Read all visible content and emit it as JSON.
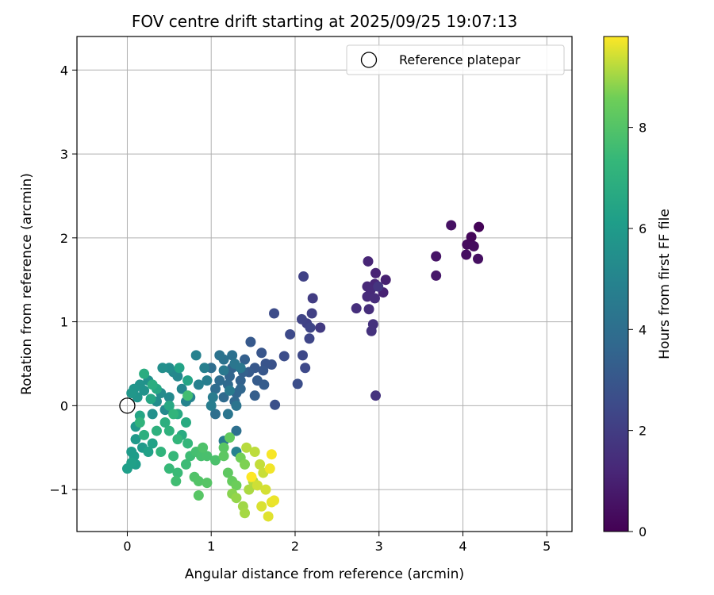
{
  "chart_data": {
    "type": "scatter",
    "title": "FOV centre drift starting at 2025/09/25 19:07:13",
    "xlabel": "Angular distance from reference (arcmin)",
    "ylabel": "Rotation from reference (arcmin)",
    "xlim": [
      -0.6,
      5.3
    ],
    "ylim": [
      -1.5,
      4.4
    ],
    "xticks": [
      0,
      1,
      2,
      3,
      4,
      5
    ],
    "xtick_labels": [
      "0",
      "1",
      "2",
      "3",
      "4",
      "5"
    ],
    "yticks": [
      -1,
      0,
      1,
      2,
      3,
      4
    ],
    "ytick_labels": [
      "−1",
      "0",
      "1",
      "2",
      "3",
      "4"
    ],
    "grid": true,
    "legend": {
      "position": "top-right",
      "label": "Reference platepar"
    },
    "reference_point": {
      "x": 0,
      "y": 0
    },
    "colorbar": {
      "label": "Hours from first FF file",
      "range": [
        0,
        9.8
      ],
      "ticks": [
        0,
        2,
        4,
        6,
        8
      ],
      "tick_labels": [
        "0",
        "2",
        "4",
        "6",
        "8"
      ],
      "colormap": "viridis"
    },
    "series": [
      {
        "name": "FOV centre",
        "points": [
          [
            4.19,
            2.13,
            0.1
          ],
          [
            4.1,
            2.01,
            0.2
          ],
          [
            4.05,
            1.92,
            0.3
          ],
          [
            4.13,
            1.9,
            0.35
          ],
          [
            4.04,
            1.8,
            0.4
          ],
          [
            4.18,
            1.75,
            0.45
          ],
          [
            3.86,
            2.15,
            0.5
          ],
          [
            3.68,
            1.78,
            0.6
          ],
          [
            3.68,
            1.55,
            0.7
          ],
          [
            3.08,
            1.5,
            1.0
          ],
          [
            3.05,
            1.35,
            1.05
          ],
          [
            2.96,
            1.58,
            1.1
          ],
          [
            2.87,
            1.72,
            1.15
          ],
          [
            2.95,
            1.45,
            1.2
          ],
          [
            2.86,
            1.42,
            1.25
          ],
          [
            2.9,
            1.38,
            1.3
          ],
          [
            2.86,
            1.3,
            1.35
          ],
          [
            2.95,
            1.28,
            1.4
          ],
          [
            2.88,
            1.15,
            1.45
          ],
          [
            2.73,
            1.16,
            1.5
          ],
          [
            2.93,
            0.97,
            1.55
          ],
          [
            2.91,
            0.89,
            1.6
          ],
          [
            2.96,
            0.12,
            1.65
          ],
          [
            2.99,
            1.42,
            1.7
          ],
          [
            2.3,
            0.93,
            1.9
          ],
          [
            2.21,
            1.28,
            2.0
          ],
          [
            2.2,
            1.1,
            2.1
          ],
          [
            2.14,
            0.98,
            2.15
          ],
          [
            2.1,
            1.54,
            2.2
          ],
          [
            2.08,
            1.03,
            2.25
          ],
          [
            2.18,
            0.93,
            2.3
          ],
          [
            2.17,
            0.8,
            2.35
          ],
          [
            2.09,
            0.6,
            2.4
          ],
          [
            2.12,
            0.45,
            2.45
          ],
          [
            1.94,
            0.85,
            2.5
          ],
          [
            1.75,
            1.1,
            2.55
          ],
          [
            1.87,
            0.59,
            2.6
          ],
          [
            2.03,
            0.26,
            2.65
          ],
          [
            1.76,
            0.01,
            2.7
          ],
          [
            1.72,
            0.49,
            2.8
          ],
          [
            1.65,
            0.5,
            2.9
          ],
          [
            1.6,
            0.63,
            2.95
          ],
          [
            1.62,
            0.42,
            3.0
          ],
          [
            1.52,
            0.45,
            3.05
          ],
          [
            1.47,
            0.76,
            3.1
          ],
          [
            1.45,
            0.4,
            3.15
          ],
          [
            1.55,
            0.3,
            3.2
          ],
          [
            1.63,
            0.25,
            3.25
          ],
          [
            1.52,
            0.12,
            3.3
          ],
          [
            1.4,
            0.55,
            3.35
          ],
          [
            1.38,
            0.4,
            3.4
          ],
          [
            1.35,
            0.3,
            3.45
          ],
          [
            1.25,
            0.45,
            3.5
          ],
          [
            1.22,
            0.35,
            3.55
          ],
          [
            1.3,
            0.15,
            3.6
          ],
          [
            1.35,
            0.2,
            3.65
          ],
          [
            1.28,
            0.05,
            3.7
          ],
          [
            1.2,
            0.25,
            3.75
          ],
          [
            1.15,
            0.1,
            3.8
          ],
          [
            1.1,
            0.3,
            3.85
          ],
          [
            1.05,
            0.2,
            3.9
          ],
          [
            1.0,
            0.45,
            3.95
          ],
          [
            1.05,
            -0.1,
            4.0
          ],
          [
            1.3,
            -0.3,
            4.05
          ],
          [
            1.25,
            0.6,
            4.1
          ],
          [
            1.15,
            0.55,
            4.15
          ],
          [
            1.1,
            0.6,
            4.2
          ],
          [
            1.3,
            0.0,
            4.25
          ],
          [
            1.2,
            -0.1,
            4.3
          ],
          [
            1.28,
            0.5,
            4.35
          ],
          [
            1.35,
            0.45,
            4.4
          ],
          [
            1.15,
            0.42,
            4.45
          ],
          [
            1.22,
            0.18,
            4.5
          ],
          [
            1.15,
            -0.42,
            4.55
          ],
          [
            1.02,
            0.1,
            4.6
          ],
          [
            1.0,
            0.0,
            4.65
          ],
          [
            0.95,
            0.3,
            4.7
          ],
          [
            0.92,
            0.45,
            4.75
          ],
          [
            0.85,
            0.25,
            4.8
          ],
          [
            0.82,
            0.6,
            4.85
          ],
          [
            1.3,
            -0.55,
            4.9
          ],
          [
            0.75,
            0.1,
            4.95
          ],
          [
            0.7,
            0.05,
            5.0
          ],
          [
            0.65,
            0.2,
            5.05
          ],
          [
            0.6,
            0.35,
            5.1
          ],
          [
            0.55,
            0.4,
            5.15
          ],
          [
            0.5,
            0.1,
            5.2
          ],
          [
            0.45,
            -0.05,
            5.25
          ],
          [
            0.4,
            0.15,
            5.3
          ],
          [
            0.35,
            0.05,
            5.35
          ],
          [
            0.5,
            0.45,
            5.4
          ],
          [
            0.42,
            0.45,
            5.45
          ],
          [
            0.3,
            -0.1,
            5.5
          ],
          [
            0.25,
            0.3,
            5.55
          ],
          [
            0.2,
            0.18,
            5.6
          ],
          [
            0.15,
            0.25,
            5.65
          ],
          [
            0.12,
            0.1,
            5.7
          ],
          [
            0.08,
            0.2,
            5.75
          ],
          [
            0.05,
            0.15,
            5.8
          ],
          [
            0.1,
            -0.25,
            5.85
          ],
          [
            0.1,
            -0.4,
            5.9
          ],
          [
            0.18,
            -0.5,
            5.95
          ],
          [
            0.05,
            -0.55,
            6.0
          ],
          [
            0.08,
            -0.6,
            6.05
          ],
          [
            0.1,
            -0.7,
            6.1
          ],
          [
            0.0,
            -0.75,
            6.15
          ],
          [
            0.05,
            -0.68,
            6.2
          ],
          [
            0.25,
            -0.55,
            6.25
          ],
          [
            0.3,
            -0.45,
            6.3
          ],
          [
            0.62,
            0.45,
            6.35
          ],
          [
            0.72,
            0.3,
            6.4
          ],
          [
            0.15,
            -0.12,
            6.45
          ],
          [
            0.28,
            0.08,
            6.5
          ],
          [
            0.35,
            0.2,
            6.55
          ],
          [
            0.5,
            0.0,
            6.6
          ],
          [
            0.6,
            -0.1,
            6.65
          ],
          [
            0.7,
            -0.2,
            6.7
          ],
          [
            0.65,
            -0.35,
            6.75
          ],
          [
            0.2,
            0.38,
            6.8
          ],
          [
            0.3,
            0.25,
            6.85
          ],
          [
            0.45,
            -0.2,
            6.9
          ],
          [
            0.2,
            -0.35,
            6.95
          ],
          [
            0.35,
            -0.3,
            7.0
          ],
          [
            0.5,
            -0.3,
            7.05
          ],
          [
            0.15,
            -0.2,
            7.1
          ],
          [
            0.4,
            -0.55,
            7.15
          ],
          [
            0.55,
            -0.1,
            7.2
          ],
          [
            0.6,
            -0.4,
            7.25
          ],
          [
            0.72,
            -0.45,
            7.3
          ],
          [
            0.55,
            -0.6,
            7.35
          ],
          [
            0.5,
            -0.75,
            7.4
          ],
          [
            0.6,
            -0.8,
            7.45
          ],
          [
            0.7,
            -0.7,
            7.5
          ],
          [
            0.75,
            -0.6,
            7.55
          ],
          [
            0.58,
            -0.9,
            7.6
          ],
          [
            0.72,
            0.12,
            7.65
          ],
          [
            0.82,
            -0.55,
            7.7
          ],
          [
            0.88,
            -0.6,
            7.75
          ],
          [
            0.95,
            -0.6,
            7.8
          ],
          [
            1.05,
            -0.65,
            7.85
          ],
          [
            0.9,
            -0.5,
            7.9
          ],
          [
            0.8,
            -0.85,
            7.95
          ],
          [
            0.85,
            -0.9,
            8.0
          ],
          [
            0.95,
            -0.92,
            8.05
          ],
          [
            0.85,
            -1.07,
            8.1
          ],
          [
            1.15,
            -0.5,
            8.15
          ],
          [
            1.15,
            -0.6,
            8.2
          ],
          [
            1.2,
            -0.8,
            8.25
          ],
          [
            1.22,
            -0.38,
            8.3
          ],
          [
            1.25,
            -0.9,
            8.4
          ],
          [
            1.3,
            -0.95,
            8.5
          ],
          [
            1.35,
            -0.62,
            8.6
          ],
          [
            1.4,
            -0.7,
            8.7
          ],
          [
            1.25,
            -1.05,
            8.8
          ],
          [
            1.3,
            -1.1,
            8.9
          ],
          [
            1.38,
            -1.2,
            9.0
          ],
          [
            1.4,
            -1.28,
            9.05
          ],
          [
            1.45,
            -1.0,
            9.1
          ],
          [
            1.5,
            -0.9,
            9.15
          ],
          [
            1.42,
            -0.5,
            9.2
          ],
          [
            1.52,
            -0.55,
            9.25
          ],
          [
            1.58,
            -0.7,
            9.3
          ],
          [
            1.62,
            -0.8,
            9.35
          ],
          [
            1.55,
            -0.95,
            9.4
          ],
          [
            1.65,
            -1.0,
            9.45
          ],
          [
            1.6,
            -1.2,
            9.5
          ],
          [
            1.68,
            -1.32,
            9.55
          ],
          [
            1.72,
            -1.15,
            9.6
          ],
          [
            1.75,
            -1.13,
            9.65
          ],
          [
            1.7,
            -0.75,
            9.7
          ],
          [
            1.72,
            -0.58,
            9.75
          ],
          [
            1.48,
            -0.85,
            9.8
          ]
        ]
      }
    ]
  }
}
